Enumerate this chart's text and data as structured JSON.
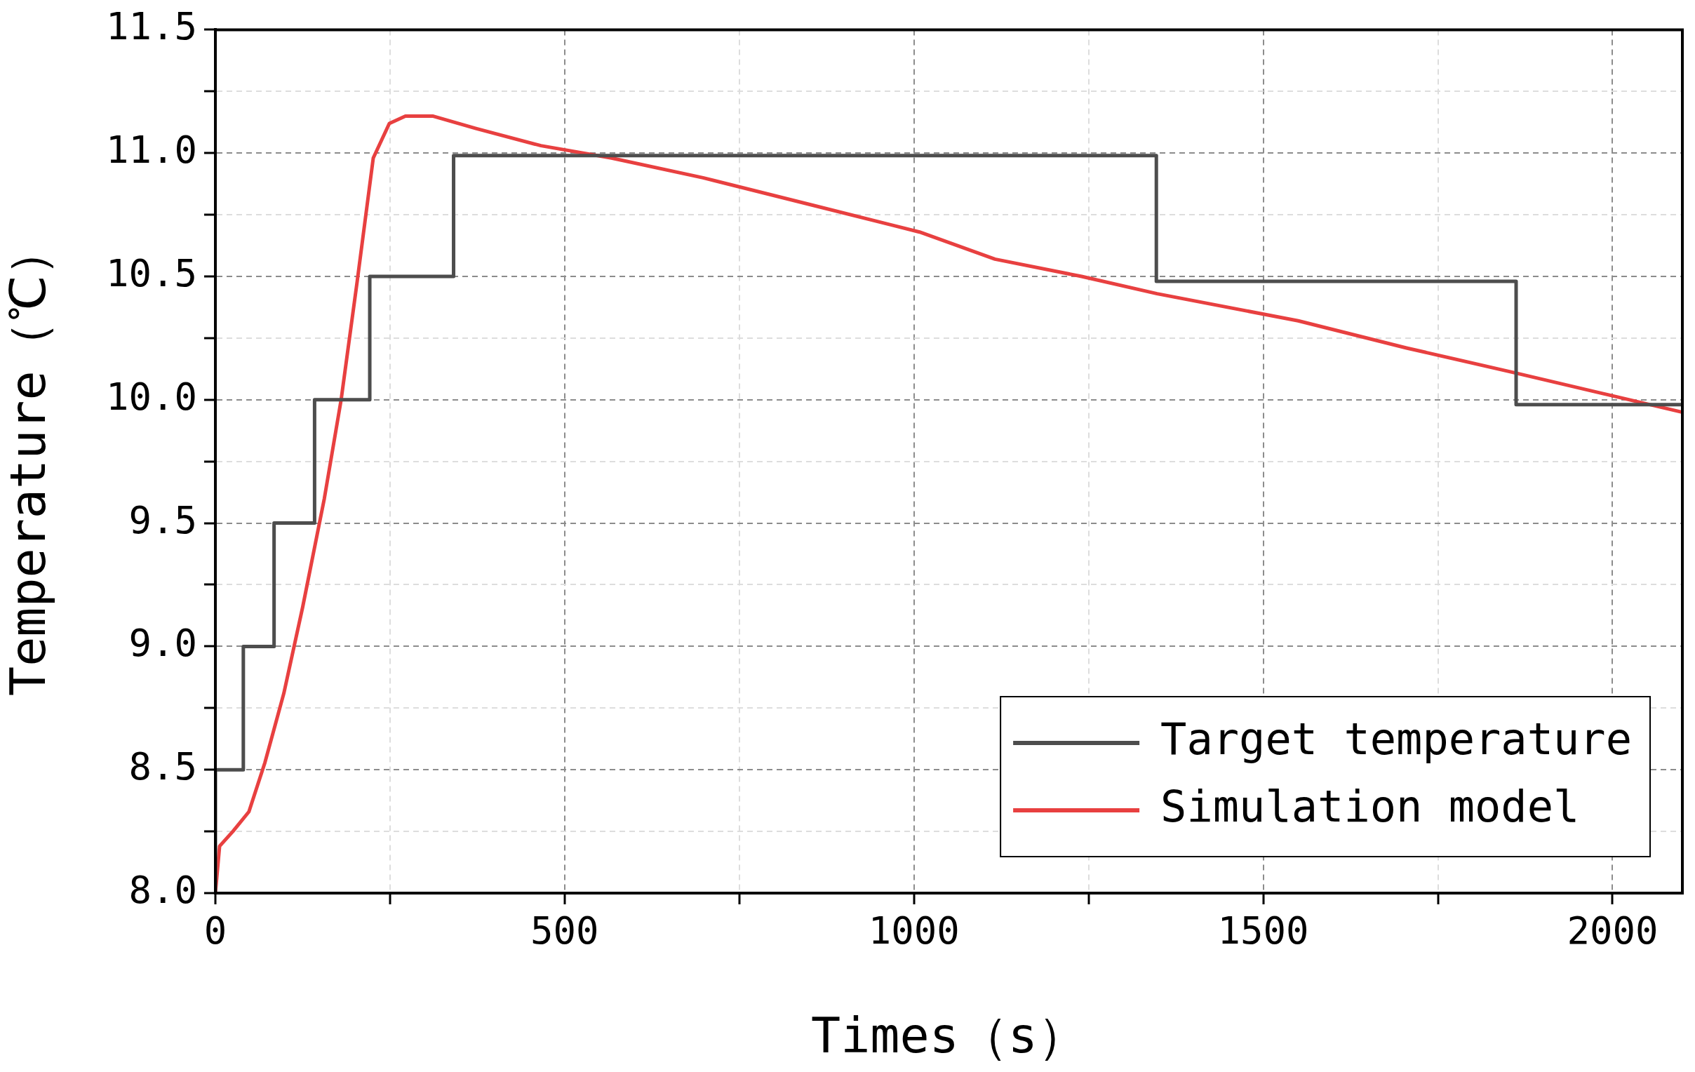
{
  "chart_data": {
    "type": "line",
    "xlabel": "Times（s）",
    "ylabel": "Temperature（℃）",
    "xlim": [
      0,
      2100
    ],
    "ylim": [
      8,
      11.5
    ],
    "xticks": [
      0,
      {
        "value": 250,
        "label": null
      },
      500,
      {
        "value": 750,
        "label": null
      },
      1000,
      {
        "value": 1250,
        "label": null
      },
      1500,
      {
        "value": 1750,
        "label": null
      },
      2000
    ],
    "yticks": [
      {
        "value": 8,
        "label": "8.0"
      },
      {
        "value": 8.25,
        "label": null
      },
      {
        "value": 8.5,
        "label": "8.5"
      },
      {
        "value": 8.75,
        "label": null
      },
      {
        "value": 9,
        "label": "9.0"
      },
      {
        "value": 9.25,
        "label": null
      },
      {
        "value": 9.5,
        "label": "9.5"
      },
      {
        "value": 9.75,
        "label": null
      },
      {
        "value": 10,
        "label": "10.0"
      },
      {
        "value": 10.25,
        "label": null
      },
      {
        "value": 10.5,
        "label": "10.5"
      },
      {
        "value": 10.75,
        "label": null
      },
      {
        "value": 11,
        "label": "11.0"
      },
      {
        "value": 11.25,
        "label": null
      },
      {
        "value": 11.5,
        "label": "11.5"
      }
    ],
    "grid": true,
    "legend": "bottom right",
    "marker": "none",
    "line_style": "solid",
    "series": [
      {
        "name": "Target temperature",
        "type": "step",
        "color": "#4d4d4d",
        "x": [
          0,
          0,
          40,
          84,
          142,
          221,
          341,
          1347,
          1862,
          2100
        ],
        "values": [
          8.0,
          8.5,
          9.0,
          9.5,
          10.0,
          10.5,
          10.99,
          10.48,
          9.98,
          9.98
        ]
      },
      {
        "name": "Simulation model",
        "type": "line",
        "color": "#e84040",
        "x": [
          0,
          6,
          25,
          48,
          71,
          98,
          125,
          156,
          180,
          203,
          226,
          249,
          272,
          311,
          373,
          466,
          567,
          698,
          853,
          1008,
          1116,
          1240,
          1348,
          1550,
          1705,
          1859,
          2099
        ],
        "values": [
          8.0,
          8.19,
          8.25,
          8.33,
          8.53,
          8.81,
          9.16,
          9.6,
          10.0,
          10.48,
          10.98,
          11.12,
          11.15,
          11.15,
          11.1,
          11.03,
          10.98,
          10.9,
          10.79,
          10.68,
          10.57,
          10.5,
          10.43,
          10.32,
          10.21,
          10.11,
          9.95
        ]
      }
    ]
  }
}
